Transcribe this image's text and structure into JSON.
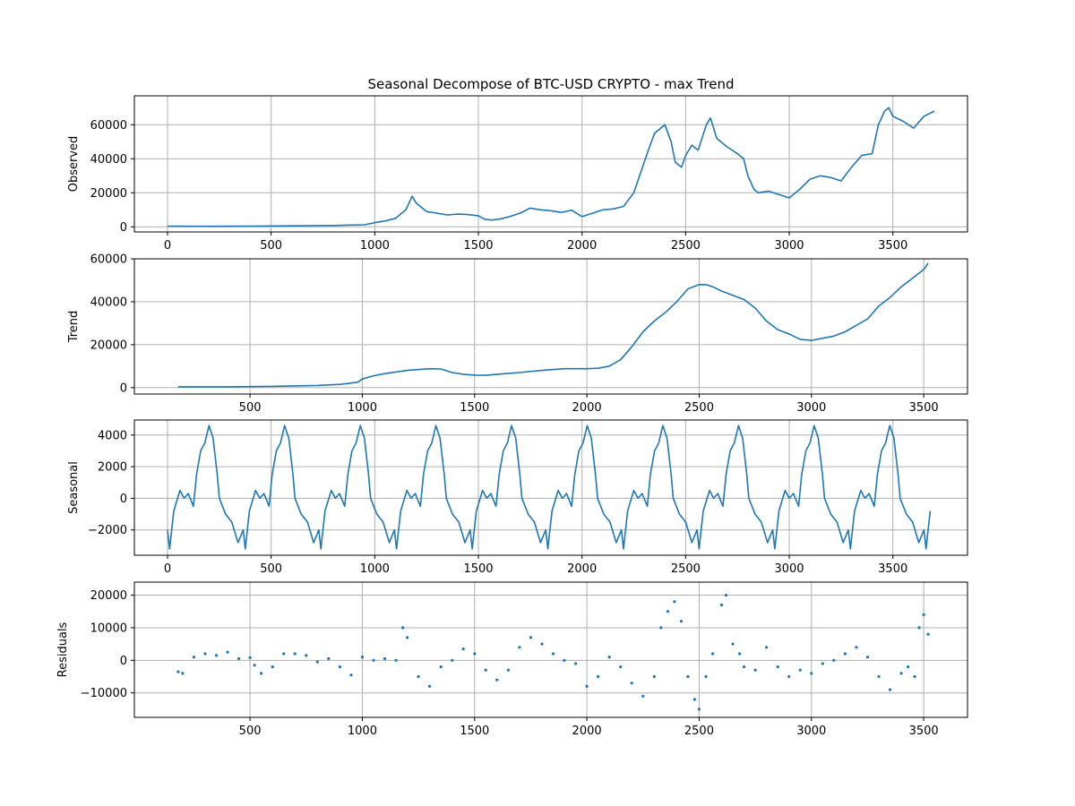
{
  "chart_data": [
    {
      "id": "observed",
      "type": "line",
      "title": "Seasonal Decompose of BTC-USD CRYPTO - max Trend",
      "xlabel": "",
      "ylabel": "Observed",
      "xlim": [
        -160,
        3860
      ],
      "ylim": [
        -3000,
        77000
      ],
      "xticks": [
        0,
        500,
        1000,
        1500,
        2000,
        2500,
        3000,
        3500
      ],
      "yticks": [
        0,
        20000,
        40000,
        60000
      ],
      "xtick_labels": [
        "0",
        "500",
        "1000",
        "1500",
        "2000",
        "2500",
        "3000",
        "3500"
      ],
      "ytick_labels": [
        "0",
        "20000",
        "40000",
        "60000"
      ],
      "grid": true,
      "color": "#1f77b4",
      "x": [
        0,
        200,
        400,
        600,
        800,
        950,
        1000,
        1050,
        1100,
        1150,
        1180,
        1200,
        1250,
        1300,
        1350,
        1400,
        1450,
        1500,
        1530,
        1560,
        1600,
        1650,
        1700,
        1750,
        1800,
        1850,
        1900,
        1950,
        2000,
        2050,
        2100,
        2150,
        2200,
        2250,
        2300,
        2320,
        2350,
        2380,
        2400,
        2430,
        2450,
        2480,
        2500,
        2530,
        2560,
        2600,
        2620,
        2650,
        2700,
        2750,
        2780,
        2800,
        2830,
        2850,
        2900,
        2950,
        3000,
        3050,
        3100,
        3150,
        3200,
        3250,
        3300,
        3350,
        3400,
        3430,
        3460,
        3480,
        3500,
        3550,
        3600,
        3650,
        3700
      ],
      "y": [
        400,
        300,
        400,
        600,
        800,
        1200,
        2500,
        3500,
        5000,
        10000,
        18000,
        14000,
        9000,
        8000,
        7000,
        7500,
        7200,
        6500,
        4500,
        4000,
        4500,
        6000,
        8000,
        11000,
        10000,
        9500,
        8500,
        9800,
        6000,
        8000,
        10000,
        10500,
        12000,
        20000,
        38000,
        45000,
        55000,
        58000,
        60000,
        50000,
        38000,
        35000,
        42000,
        48000,
        45000,
        60000,
        64000,
        52000,
        47000,
        43000,
        40000,
        30000,
        22000,
        20000,
        21000,
        19000,
        17000,
        22000,
        28000,
        30000,
        29000,
        27000,
        35000,
        42000,
        43000,
        60000,
        68000,
        70000,
        65000,
        62000,
        58000,
        65000,
        68000
      ]
    },
    {
      "id": "trend",
      "type": "line",
      "xlabel": "",
      "ylabel": "Trend",
      "xlim": [
        -15,
        3695
      ],
      "ylim": [
        -3000,
        60000
      ],
      "xticks": [
        500,
        1000,
        1500,
        2000,
        2500,
        3000,
        3500
      ],
      "yticks": [
        0,
        20000,
        40000,
        60000
      ],
      "xtick_labels": [
        "500",
        "1000",
        "1500",
        "2000",
        "2500",
        "3000",
        "3500"
      ],
      "ytick_labels": [
        "0",
        "20000",
        "40000",
        "60000"
      ],
      "grid": true,
      "color": "#1f77b4",
      "x": [
        180,
        400,
        600,
        800,
        900,
        980,
        1000,
        1050,
        1100,
        1200,
        1300,
        1350,
        1400,
        1450,
        1500,
        1550,
        1600,
        1700,
        1800,
        1900,
        2000,
        2050,
        2100,
        2150,
        2200,
        2250,
        2300,
        2350,
        2400,
        2450,
        2500,
        2530,
        2560,
        2600,
        2650,
        2700,
        2750,
        2800,
        2850,
        2900,
        2950,
        3000,
        3050,
        3100,
        3150,
        3200,
        3250,
        3300,
        3350,
        3400,
        3450,
        3500,
        3520
      ],
      "y": [
        400,
        400,
        600,
        1000,
        1500,
        2500,
        4000,
        5500,
        6500,
        8000,
        8800,
        8700,
        7000,
        6200,
        5800,
        5700,
        6200,
        7000,
        8000,
        8800,
        8800,
        9000,
        10000,
        13000,
        19000,
        26000,
        31000,
        35000,
        40000,
        46000,
        48000,
        48000,
        47000,
        45000,
        43000,
        41000,
        37000,
        31000,
        27000,
        25000,
        22500,
        22000,
        23000,
        24000,
        26000,
        29000,
        32000,
        38000,
        42000,
        47000,
        51000,
        55000,
        58000
      ]
    },
    {
      "id": "seasonal",
      "type": "line",
      "xlabel": "",
      "ylabel": "Seasonal",
      "xlim": [
        -160,
        3860
      ],
      "ylim": [
        -3600,
        4950
      ],
      "xticks": [
        0,
        500,
        1000,
        1500,
        2000,
        2500,
        3000,
        3500
      ],
      "yticks": [
        -2000,
        0,
        2000,
        4000
      ],
      "xtick_labels": [
        "0",
        "500",
        "1000",
        "1500",
        "2000",
        "2500",
        "3000",
        "3500"
      ],
      "ytick_labels": [
        "−2000",
        "0",
        "2000",
        "4000"
      ],
      "grid": true,
      "color": "#1f77b4",
      "period": 365,
      "x_end": 3705,
      "cycle_x": [
        0,
        10,
        30,
        60,
        80,
        100,
        125,
        140,
        160,
        180,
        200,
        220,
        240,
        250,
        280,
        310,
        340,
        365
      ],
      "cycle_y": [
        -2000,
        -3200,
        -800,
        500,
        0,
        300,
        -500,
        1500,
        3000,
        3500,
        4600,
        3800,
        1500,
        0,
        -1000,
        -1500,
        -2800,
        -2000
      ]
    },
    {
      "id": "residuals",
      "type": "scatter",
      "xlabel": "",
      "ylabel": "Residuals",
      "xlim": [
        -15,
        3695
      ],
      "ylim": [
        -17500,
        24000
      ],
      "xticks": [
        500,
        1000,
        1500,
        2000,
        2500,
        3000,
        3500
      ],
      "yticks": [
        -10000,
        0,
        10000,
        20000
      ],
      "xtick_labels": [
        "500",
        "1000",
        "1500",
        "2000",
        "2500",
        "3000",
        "3500"
      ],
      "ytick_labels": [
        "−10000",
        "0",
        "10000",
        "20000"
      ],
      "grid": true,
      "color": "#1f77b4",
      "x": [
        180,
        200,
        250,
        300,
        350,
        400,
        450,
        500,
        520,
        550,
        600,
        650,
        700,
        750,
        800,
        850,
        900,
        950,
        1000,
        1050,
        1100,
        1150,
        1180,
        1200,
        1250,
        1300,
        1350,
        1400,
        1450,
        1500,
        1550,
        1600,
        1650,
        1700,
        1750,
        1800,
        1850,
        1900,
        1950,
        2000,
        2050,
        2100,
        2150,
        2200,
        2250,
        2300,
        2330,
        2360,
        2390,
        2420,
        2450,
        2480,
        2500,
        2530,
        2560,
        2600,
        2620,
        2650,
        2680,
        2700,
        2750,
        2800,
        2850,
        2900,
        2950,
        3000,
        3050,
        3100,
        3150,
        3200,
        3250,
        3300,
        3350,
        3400,
        3430,
        3460,
        3480,
        3500,
        3520
      ],
      "y": [
        -3500,
        -4000,
        1000,
        2000,
        1500,
        2500,
        500,
        800,
        -1500,
        -4000,
        -2000,
        2000,
        2000,
        1500,
        -500,
        500,
        -2000,
        -4500,
        1000,
        0,
        500,
        0,
        10000,
        7000,
        -5000,
        -8000,
        -2000,
        0,
        3500,
        2000,
        -3000,
        -6000,
        -3000,
        4000,
        7000,
        5000,
        2000,
        0,
        -1000,
        -8000,
        -5000,
        1000,
        -2000,
        -7000,
        -11000,
        -5000,
        10000,
        15000,
        18000,
        12000,
        -5000,
        -12000,
        -15000,
        -5000,
        2000,
        17000,
        20000,
        5000,
        2000,
        -2000,
        -3000,
        4000,
        -2000,
        -5000,
        -3000,
        -4000,
        -1000,
        0,
        2000,
        4000,
        1000,
        -5000,
        -9000,
        -4000,
        -2000,
        -5000,
        10000,
        14000,
        8000
      ]
    }
  ]
}
